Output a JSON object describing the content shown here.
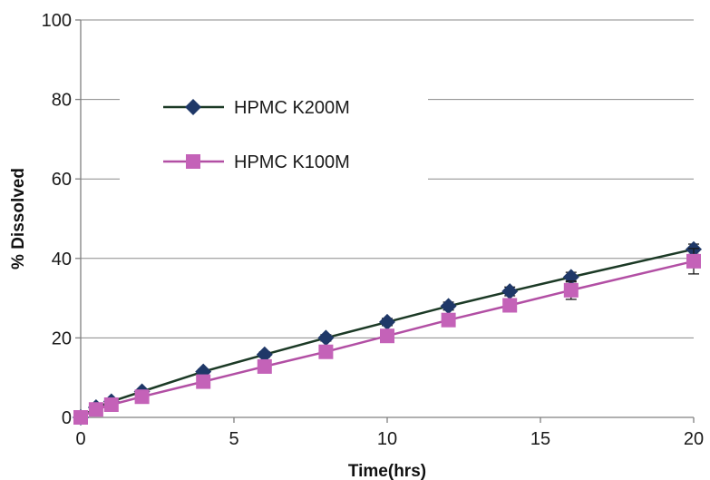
{
  "chart_data": {
    "type": "line",
    "title": "",
    "xlabel": "Time(hrs)",
    "ylabel": "% Dissolved",
    "xlim": [
      0,
      20
    ],
    "ylim": [
      0,
      100
    ],
    "xticks": [
      0,
      5,
      10,
      15,
      20
    ],
    "yticks": [
      0,
      20,
      40,
      60,
      80,
      100
    ],
    "grid": "horizontal",
    "legend_position": "upper-left",
    "series": [
      {
        "name": "HPMC K200M",
        "color": "#1f3868",
        "line_color": "#1c3a26",
        "marker": "diamond",
        "x": [
          0,
          0.5,
          1,
          2,
          4,
          6,
          8,
          10,
          12,
          14,
          16,
          20
        ],
        "y": [
          0,
          2.5,
          4,
          6.5,
          11.5,
          15.8,
          20,
          24,
          28,
          31.7,
          35.3,
          42.3
        ],
        "error": [
          0,
          0.3,
          0.4,
          0.5,
          0.6,
          0.7,
          0.8,
          0.9,
          1.0,
          1.1,
          1.2,
          1.3
        ]
      },
      {
        "name": "HPMC K100M",
        "color": "#c462b8",
        "line_color": "#b24fa4",
        "marker": "square",
        "x": [
          0,
          0.5,
          1,
          2,
          4,
          6,
          8,
          10,
          12,
          14,
          16,
          20
        ],
        "y": [
          0,
          2,
          3.2,
          5.2,
          9,
          12.8,
          16.5,
          20.5,
          24.5,
          28.2,
          32,
          39.3
        ],
        "error": [
          0,
          0.3,
          0.4,
          0.5,
          0.6,
          0.7,
          0.8,
          0.9,
          1.0,
          1.5,
          2.3,
          3.2
        ]
      }
    ]
  }
}
